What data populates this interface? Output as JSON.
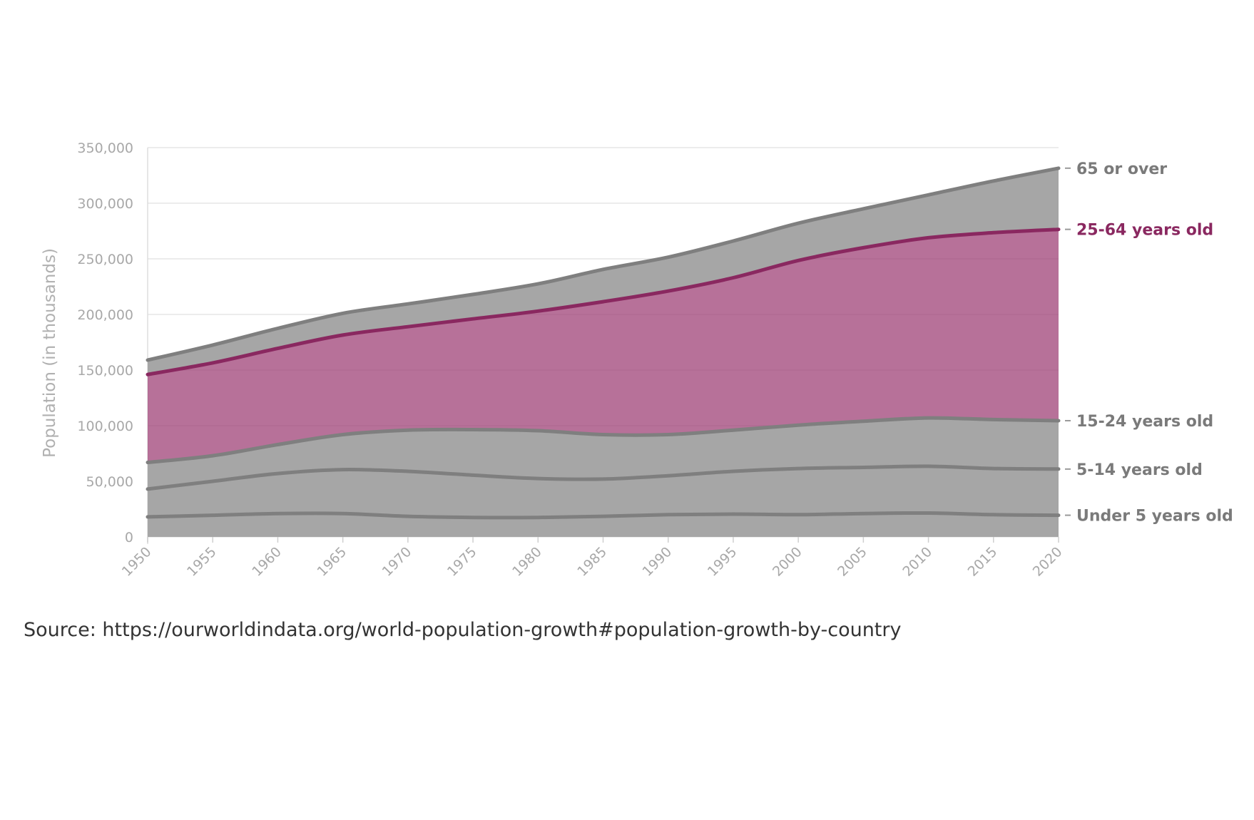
{
  "chart_data": {
    "type": "area",
    "stacked": true,
    "title": "",
    "xlabel": "",
    "ylabel": "Population (in thousands)",
    "xlim": [
      1950,
      2020
    ],
    "ylim": [
      0,
      350000
    ],
    "x_ticks": [
      1950,
      1955,
      1960,
      1965,
      1970,
      1975,
      1980,
      1985,
      1990,
      1995,
      2000,
      2005,
      2010,
      2015,
      2020
    ],
    "y_ticks": [
      0,
      50000,
      100000,
      150000,
      200000,
      250000,
      300000,
      350000
    ],
    "y_tick_labels": [
      "0",
      "50,000",
      "100,000",
      "150,000",
      "200,000",
      "250,000",
      "300,000",
      "350,000"
    ],
    "x": [
      1950,
      1955,
      1960,
      1965,
      1970,
      1975,
      1980,
      1985,
      1990,
      1995,
      2000,
      2005,
      2010,
      2015,
      2020
    ],
    "series": [
      {
        "name": "Under 5 years old",
        "label": "Under 5 years old",
        "color": "#a6a6a6",
        "line_color": "#7f7f7f",
        "highlight": false,
        "values": [
          18000,
          19500,
          21000,
          21000,
          18500,
          17500,
          17500,
          18500,
          20000,
          20500,
          20000,
          21000,
          21500,
          20000,
          19500
        ]
      },
      {
        "name": "5-14 years old",
        "label": "5-14 years old",
        "color": "#a6a6a6",
        "line_color": "#7f7f7f",
        "highlight": false,
        "values": [
          25000,
          30500,
          36000,
          39500,
          40500,
          38000,
          35000,
          33500,
          35000,
          38500,
          41500,
          41500,
          42000,
          41500,
          41500
        ]
      },
      {
        "name": "15-24 years old",
        "label": "15-24 years old",
        "color": "#a6a6a6",
        "line_color": "#7f7f7f",
        "highlight": false,
        "values": [
          24000,
          23000,
          26000,
          31500,
          37000,
          41000,
          43000,
          40000,
          37000,
          37000,
          39000,
          41500,
          43500,
          44000,
          43500
        ]
      },
      {
        "name": "25-64 years old",
        "label": "25-64 years old",
        "color": "#9b3a72",
        "line_color": "#8a2860",
        "highlight": true,
        "values": [
          79000,
          83500,
          86500,
          89500,
          93000,
          99500,
          107500,
          119500,
          129000,
          137000,
          148000,
          156000,
          162000,
          168000,
          172000
        ]
      },
      {
        "name": "65 or over",
        "label": "65 or over",
        "color": "#a6a6a6",
        "line_color": "#7f7f7f",
        "highlight": false,
        "values": [
          13000,
          16000,
          18000,
          19500,
          20500,
          22000,
          24500,
          29000,
          30500,
          33000,
          33500,
          35000,
          38500,
          46500,
          55000
        ]
      }
    ]
  },
  "source_text": "Source: https://ourworldindata.org/world-population-growth#population-growth-by-country"
}
